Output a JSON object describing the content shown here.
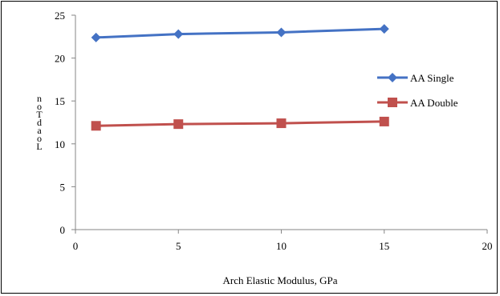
{
  "chart_data": {
    "type": "line",
    "title": "",
    "xlabel": "Arch Elastic Modulus, GPa",
    "ylabel": "Load, Ton",
    "ylabel_rendered_glyphs": [
      "n",
      "o",
      "T",
      "d",
      "a",
      "o",
      "L"
    ],
    "xlim": [
      0,
      20
    ],
    "ylim": [
      0,
      25
    ],
    "x_ticks": [
      "0",
      "5",
      "10",
      "15",
      "20"
    ],
    "y_ticks": [
      "0",
      "5",
      "10",
      "15",
      "20",
      "25"
    ],
    "grid": false,
    "legend_placement": "right",
    "series": [
      {
        "name": "AA Single",
        "color": "#4472C4",
        "marker": "diamond",
        "x": [
          1,
          5,
          10,
          15
        ],
        "values": [
          22.4,
          22.8,
          23.0,
          23.4
        ]
      },
      {
        "name": "AA Double",
        "color": "#C0504D",
        "marker": "square",
        "x": [
          1,
          5,
          10,
          15
        ],
        "values": [
          12.1,
          12.3,
          12.4,
          12.6
        ]
      }
    ]
  }
}
